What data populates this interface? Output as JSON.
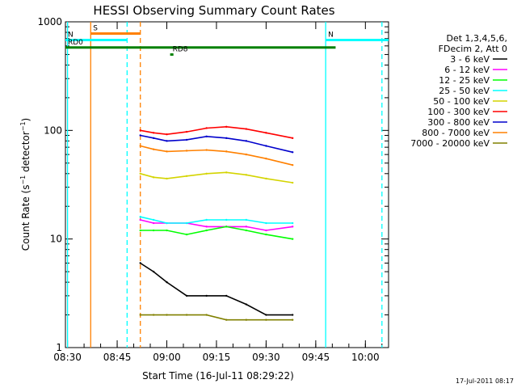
{
  "chart_data": {
    "type": "line",
    "title": "HESSI Observing Summary Count Rates",
    "xlabel": "Start Time (16-Jul-11 08:29:22)",
    "ylabel_main": "Count Rate (s",
    "ylabel_exp1": "−1",
    "ylabel_mid": " detector",
    "ylabel_exp2": "−1",
    "ylabel_end": ")",
    "y_scale": "log",
    "ylim": [
      1,
      1000
    ],
    "xlim": [
      "08:29:22",
      "10:07:00"
    ],
    "x_ticks": [
      "08:30",
      "08:45",
      "09:00",
      "09:15",
      "09:30",
      "09:45",
      "10:00"
    ],
    "y_ticks": [
      "1",
      "10",
      "100",
      "1000"
    ],
    "timestamp": "17-Jul-2011 08:17",
    "legend_header": [
      "Det 1,3,4,5,6,",
      "FDecim 2, Att 0"
    ],
    "legend_placement": "top-right",
    "series": [
      {
        "name": "3 - 6 keV",
        "color": "#000000",
        "values": [
          6,
          5,
          4,
          3,
          3,
          3,
          2.5,
          2,
          2
        ]
      },
      {
        "name": "6 - 12 keV",
        "color": "#ff00ff",
        "values": [
          15,
          14,
          14,
          14,
          13,
          13,
          13,
          12,
          13
        ]
      },
      {
        "name": "12 - 25 keV",
        "color": "#00ff00",
        "values": [
          12,
          12,
          12,
          11,
          12,
          13,
          12,
          11,
          10
        ]
      },
      {
        "name": "25 - 50 keV",
        "color": "#00ffff",
        "values": [
          16,
          15,
          14,
          14,
          15,
          15,
          15,
          14,
          14
        ]
      },
      {
        "name": "50 - 100 keV",
        "color": "#d4d400",
        "values": [
          40,
          37,
          36,
          38,
          40,
          41,
          39,
          36,
          33
        ]
      },
      {
        "name": "100 - 300 keV",
        "color": "#ff0000",
        "values": [
          100,
          95,
          92,
          97,
          105,
          108,
          103,
          95,
          85
        ]
      },
      {
        "name": "300 - 800 keV",
        "color": "#0000cc",
        "values": [
          90,
          85,
          80,
          82,
          88,
          85,
          80,
          72,
          63
        ]
      },
      {
        "name": "800 - 7000 keV",
        "color": "#ff8000",
        "values": [
          72,
          67,
          64,
          65,
          66,
          64,
          60,
          55,
          48
        ]
      },
      {
        "name": "7000 - 20000 keV",
        "color": "#808000",
        "values": [
          2,
          2,
          2,
          2,
          2,
          1.8,
          1.8,
          1.8,
          1.8
        ]
      }
    ],
    "series_times": [
      "08:52:00",
      "08:56:00",
      "09:00:00",
      "09:06:00",
      "09:12:00",
      "09:18:00",
      "09:24:00",
      "09:30:00",
      "09:38:00"
    ],
    "flags": [
      {
        "label": "S",
        "color": "#ff8000",
        "start": "08:37:00",
        "end": "08:52:00",
        "level": 780
      },
      {
        "label": "N",
        "color": "#00ffff",
        "start": "08:29:22",
        "end": "08:48:00",
        "level": 680
      },
      {
        "label": "N",
        "color": "#00ffff",
        "start": "09:48:00",
        "end": "10:07:00",
        "level": 680
      },
      {
        "label": "RD0",
        "color": "#008000",
        "start": "08:29:22",
        "end": "09:51:00",
        "level": 580
      },
      {
        "label": "RD8",
        "color": "#008000",
        "start": "09:01:00",
        "end": "09:02:00",
        "level": 500
      }
    ],
    "vlines": [
      {
        "time": "08:37:00",
        "color": "#ff8000",
        "style": "solid"
      },
      {
        "time": "08:52:00",
        "color": "#ff8000",
        "style": "dashed"
      },
      {
        "time": "08:30:00",
        "color": "#00ffff",
        "style": "solid"
      },
      {
        "time": "08:48:00",
        "color": "#00ffff",
        "style": "dashed"
      },
      {
        "time": "09:48:00",
        "color": "#00ffff",
        "style": "solid"
      },
      {
        "time": "10:05:00",
        "color": "#00ffff",
        "style": "dashed"
      }
    ]
  }
}
